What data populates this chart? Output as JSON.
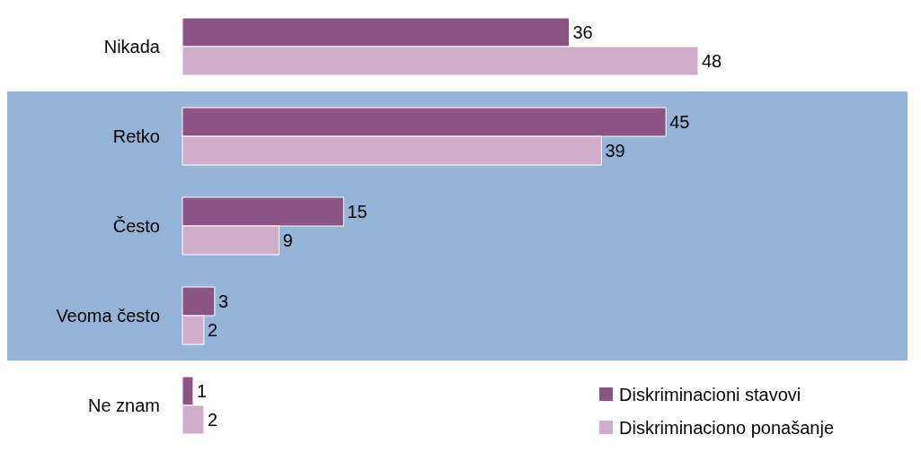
{
  "chart_data": {
    "type": "bar",
    "orientation": "horizontal",
    "categories": [
      "Nikada",
      "Retko",
      "Često",
      "Veoma često",
      "Ne znam"
    ],
    "series": [
      {
        "name": "Diskriminacioni stavovi",
        "color": "#8b5485",
        "values": [
          36,
          45,
          15,
          3,
          1
        ]
      },
      {
        "name": "Diskriminaciono ponašanje",
        "color": "#cfadc9",
        "values": [
          48,
          39,
          9,
          2,
          2
        ]
      }
    ],
    "data_labels": true,
    "legend": "bottom right",
    "bands": [
      {
        "axis": "y",
        "from": "Retko",
        "to": "Veoma često",
        "color": "#95b3d7"
      }
    ]
  }
}
